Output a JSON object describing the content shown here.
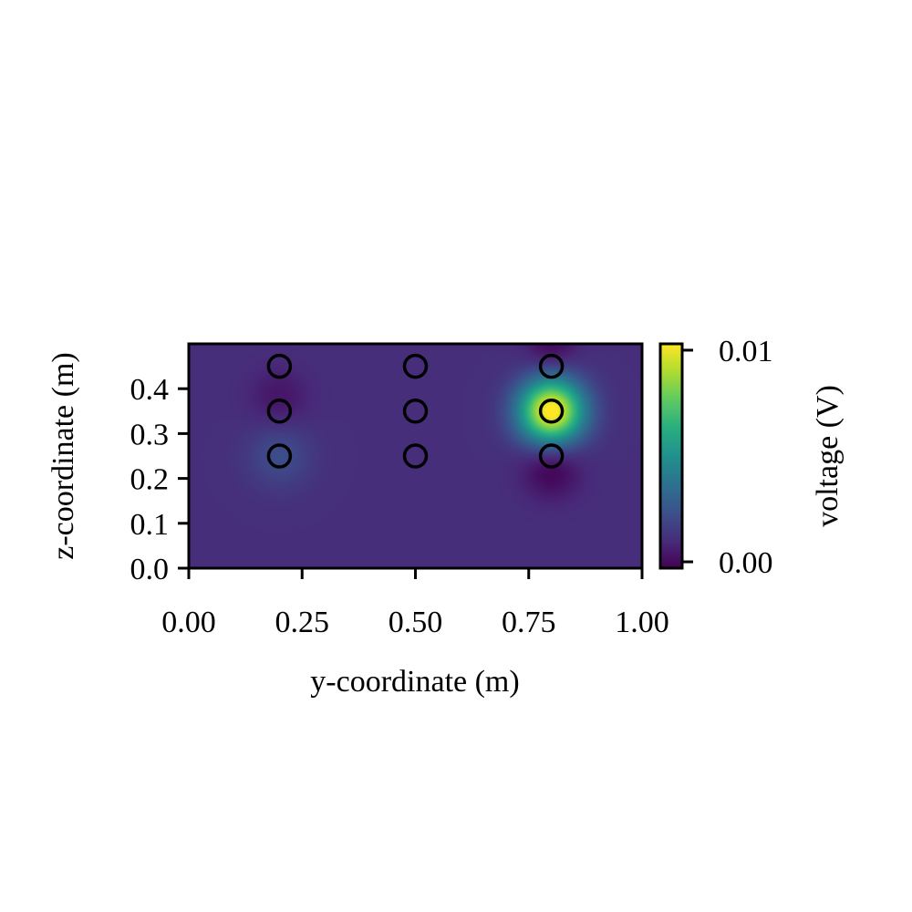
{
  "chart_data": {
    "type": "heatmap",
    "xlabel": "y-coordinate (m)",
    "ylabel": "z-coordinate (m)",
    "xlim": [
      0.0,
      1.0
    ],
    "ylim": [
      0.0,
      0.5
    ],
    "xticks": [
      0.0,
      0.25,
      0.5,
      0.75,
      1.0
    ],
    "xtick_labels": [
      "0.00",
      "0.25",
      "0.50",
      "0.75",
      "1.00"
    ],
    "yticks": [
      0.0,
      0.1,
      0.2,
      0.3,
      0.4
    ],
    "ytick_labels": [
      "0.0",
      "0.1",
      "0.2",
      "0.3",
      "0.4"
    ],
    "colorscale": "viridis",
    "colorbar": {
      "label": "voltage (V)",
      "range": [
        -0.0003,
        0.0103
      ],
      "ticks": [
        0.0,
        0.01
      ],
      "tick_labels": [
        "0.00",
        "0.01"
      ]
    },
    "baseline_voltage": 0.0011,
    "field_sources": [
      {
        "y": 0.8,
        "z": 0.35,
        "amplitude": 0.0095,
        "sigma": 0.05
      },
      {
        "y": 0.8,
        "z": 0.22,
        "amplitude": -0.0014,
        "sigma": 0.045
      },
      {
        "y": 0.8,
        "z": 0.5,
        "amplitude": -0.0012,
        "sigma": 0.04
      },
      {
        "y": 0.2,
        "z": 0.25,
        "amplitude": 0.0011,
        "sigma": 0.05
      },
      {
        "y": 0.2,
        "z": 0.38,
        "amplitude": -0.0008,
        "sigma": 0.045
      }
    ],
    "electrodes": [
      {
        "y": 0.2,
        "z": 0.45
      },
      {
        "y": 0.2,
        "z": 0.35
      },
      {
        "y": 0.2,
        "z": 0.25
      },
      {
        "y": 0.5,
        "z": 0.45
      },
      {
        "y": 0.5,
        "z": 0.35
      },
      {
        "y": 0.5,
        "z": 0.25
      },
      {
        "y": 0.8,
        "z": 0.45
      },
      {
        "y": 0.8,
        "z": 0.35
      },
      {
        "y": 0.8,
        "z": 0.25
      }
    ],
    "grid": false,
    "marker_style": "hollow black circle"
  }
}
